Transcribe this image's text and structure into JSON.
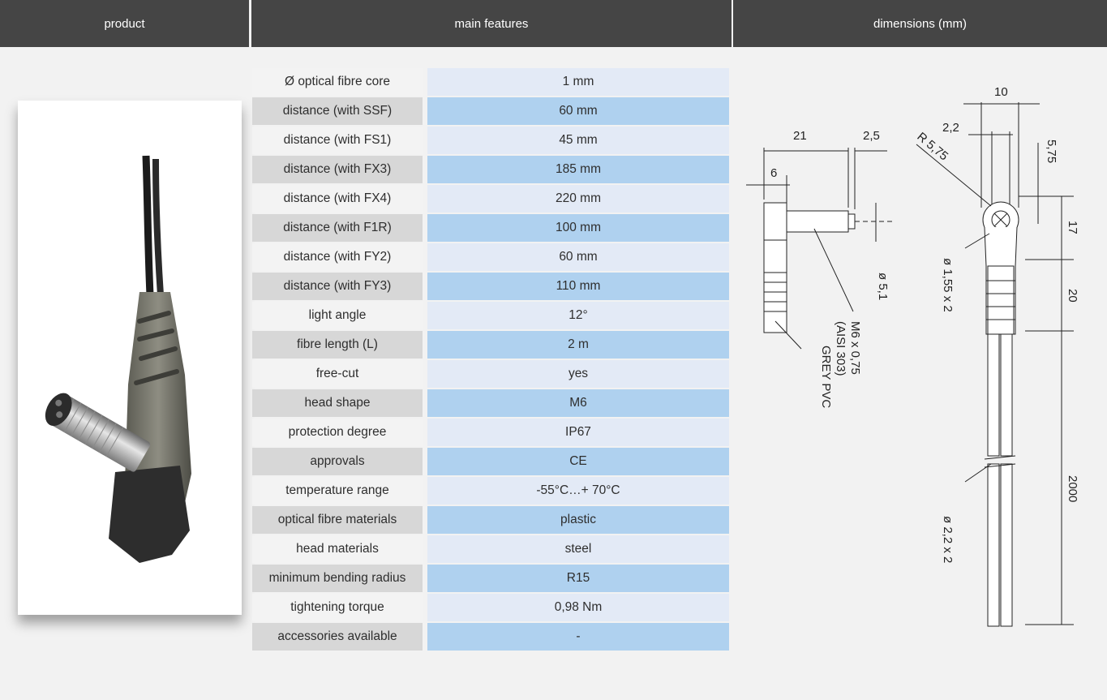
{
  "headers": {
    "product": "product",
    "features": "main features",
    "dimensions": "dimensions (mm)"
  },
  "features": [
    {
      "label": "Ø optical fibre core",
      "value": "1 mm"
    },
    {
      "label": "distance (with SSF)",
      "value": "60 mm"
    },
    {
      "label": "distance (with FS1)",
      "value": "45 mm"
    },
    {
      "label": "distance (with FX3)",
      "value": "185 mm"
    },
    {
      "label": "distance (with FX4)",
      "value": "220 mm"
    },
    {
      "label": "distance (with F1R)",
      "value": "100 mm"
    },
    {
      "label": "distance (with FY2)",
      "value": "60 mm"
    },
    {
      "label": "distance (with FY3)",
      "value": "110 mm"
    },
    {
      "label": "light angle",
      "value": "12°"
    },
    {
      "label": "fibre length (L)",
      "value": "2 m"
    },
    {
      "label": "free-cut",
      "value": "yes"
    },
    {
      "label": "head shape",
      "value": "M6"
    },
    {
      "label": "protection degree",
      "value": "IP67"
    },
    {
      "label": "approvals",
      "value": "CE"
    },
    {
      "label": "temperature range",
      "value": "-55°C…+ 70°C"
    },
    {
      "label": "optical fibre materials",
      "value": "plastic"
    },
    {
      "label": "head materials",
      "value": "steel"
    },
    {
      "label": "minimum bending radius",
      "value": "R15"
    },
    {
      "label": "tightening torque",
      "value": "0,98 Nm"
    },
    {
      "label": "accessories available",
      "value": "-"
    }
  ],
  "drawing": {
    "d21": "21",
    "d2_5": "2,5",
    "d6": "6",
    "d5_1": "ø 5,1",
    "thread": "M6 x 0,75",
    "steel": "(AISI 303)",
    "pvc": "GREY PVC",
    "d10": "10",
    "d2_2": "2,2",
    "r575": "R 5,75",
    "d5_75": "5,75",
    "d1_55": "ø 1,55 x 2",
    "d17": "17",
    "d20": "20",
    "d2000": "2000",
    "d2_2x2": "ø 2,2 x 2"
  },
  "colors": {
    "header_bg": "#454545",
    "row_label_light": "#f3f3f3",
    "row_label_dark": "#d7d7d7",
    "row_value_light": "#e3eaf6",
    "row_value_dark": "#afd1ef"
  }
}
